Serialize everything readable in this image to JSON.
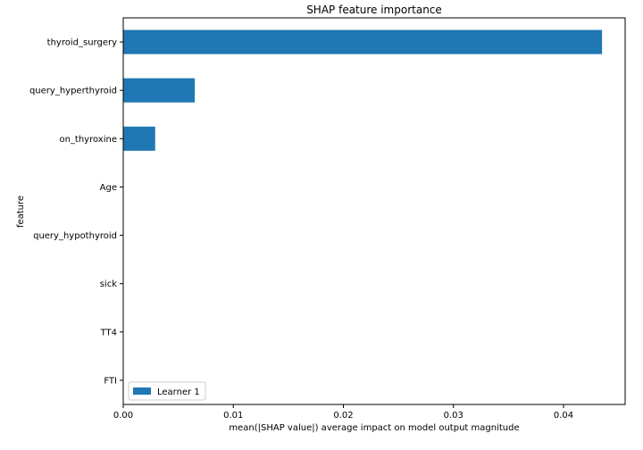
{
  "chart_data": {
    "type": "bar",
    "orientation": "horizontal",
    "title": "SHAP feature importance",
    "xlabel": "mean(|SHAP value|) average impact on model output magnitude",
    "ylabel": "feature",
    "categories": [
      "thyroid_surgery",
      "query_hyperthyroid",
      "on_thyroxine",
      "Age",
      "query_hypothyroid",
      "sick",
      "TT4",
      "FTI"
    ],
    "series": [
      {
        "name": "Learner 1",
        "color": "#1f77b4",
        "values": [
          0.0435,
          0.0065,
          0.0029,
          0,
          0,
          0,
          0,
          0
        ]
      }
    ],
    "xlim": [
      0,
      0.0456
    ],
    "xticks": [
      0.0,
      0.01,
      0.02,
      0.03,
      0.04
    ],
    "xtick_labels": [
      "0.00",
      "0.01",
      "0.02",
      "0.03",
      "0.04"
    ],
    "grid": false,
    "legend_position": "lower-left"
  }
}
